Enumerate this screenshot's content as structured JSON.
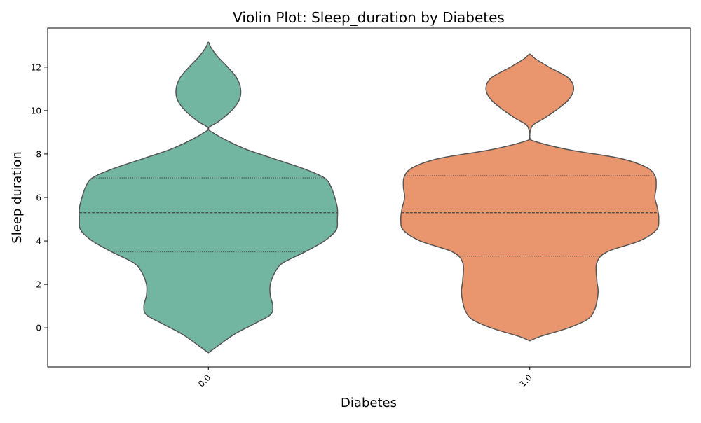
{
  "chart_data": {
    "type": "violin",
    "title": "Violin Plot: Sleep_duration by Diabetes",
    "xlabel": "Diabetes",
    "ylabel": "Sleep duration",
    "categories": [
      "0.0",
      "1.0"
    ],
    "ylim": [
      -1.8,
      13.8
    ],
    "yticks": [
      0,
      2,
      4,
      6,
      8,
      10,
      12
    ],
    "ytick_labels": [
      "0",
      "2",
      "4",
      "6",
      "8",
      "10",
      "12"
    ],
    "grid": false,
    "series": [
      {
        "category": "0.0",
        "color": "#72b6a1",
        "quartiles": {
          "q1": 3.5,
          "median": 5.3,
          "q3": 6.9
        },
        "density": [
          [
            -1.15,
            0.0
          ],
          [
            -0.8,
            0.08
          ],
          [
            -0.3,
            0.2
          ],
          [
            0.2,
            0.36
          ],
          [
            0.6,
            0.48
          ],
          [
            1.0,
            0.5
          ],
          [
            1.5,
            0.48
          ],
          [
            2.0,
            0.48
          ],
          [
            2.6,
            0.52
          ],
          [
            3.0,
            0.58
          ],
          [
            3.5,
            0.75
          ],
          [
            4.0,
            0.9
          ],
          [
            4.5,
            0.99
          ],
          [
            5.0,
            1.0
          ],
          [
            5.5,
            1.0
          ],
          [
            6.0,
            0.98
          ],
          [
            6.5,
            0.95
          ],
          [
            6.9,
            0.9
          ],
          [
            7.3,
            0.75
          ],
          [
            7.8,
            0.5
          ],
          [
            8.2,
            0.3
          ],
          [
            8.6,
            0.15
          ],
          [
            9.0,
            0.03
          ],
          [
            9.2,
            0.0
          ],
          [
            9.5,
            0.08
          ],
          [
            10.0,
            0.18
          ],
          [
            10.5,
            0.24
          ],
          [
            11.0,
            0.25
          ],
          [
            11.5,
            0.22
          ],
          [
            12.0,
            0.15
          ],
          [
            12.5,
            0.07
          ],
          [
            12.9,
            0.02
          ],
          [
            13.15,
            0.0
          ]
        ]
      },
      {
        "category": "1.0",
        "color": "#e9956e",
        "quartiles": {
          "q1": 3.3,
          "median": 5.3,
          "q3": 7.0
        },
        "density": [
          [
            -0.6,
            0.0
          ],
          [
            -0.4,
            0.08
          ],
          [
            0.0,
            0.3
          ],
          [
            0.4,
            0.45
          ],
          [
            0.8,
            0.5
          ],
          [
            1.2,
            0.52
          ],
          [
            1.7,
            0.53
          ],
          [
            2.2,
            0.52
          ],
          [
            3.0,
            0.52
          ],
          [
            3.5,
            0.6
          ],
          [
            4.0,
            0.85
          ],
          [
            4.5,
            0.98
          ],
          [
            5.0,
            1.0
          ],
          [
            5.5,
            0.99
          ],
          [
            6.0,
            0.97
          ],
          [
            6.5,
            0.98
          ],
          [
            7.0,
            0.97
          ],
          [
            7.4,
            0.9
          ],
          [
            7.8,
            0.7
          ],
          [
            8.2,
            0.3
          ],
          [
            8.6,
            0.03
          ],
          [
            8.8,
            0.0
          ],
          [
            9.3,
            0.02
          ],
          [
            9.6,
            0.1
          ],
          [
            10.0,
            0.2
          ],
          [
            10.5,
            0.3
          ],
          [
            11.0,
            0.34
          ],
          [
            11.5,
            0.3
          ],
          [
            12.0,
            0.15
          ],
          [
            12.4,
            0.04
          ],
          [
            12.6,
            0.0
          ]
        ]
      }
    ]
  }
}
